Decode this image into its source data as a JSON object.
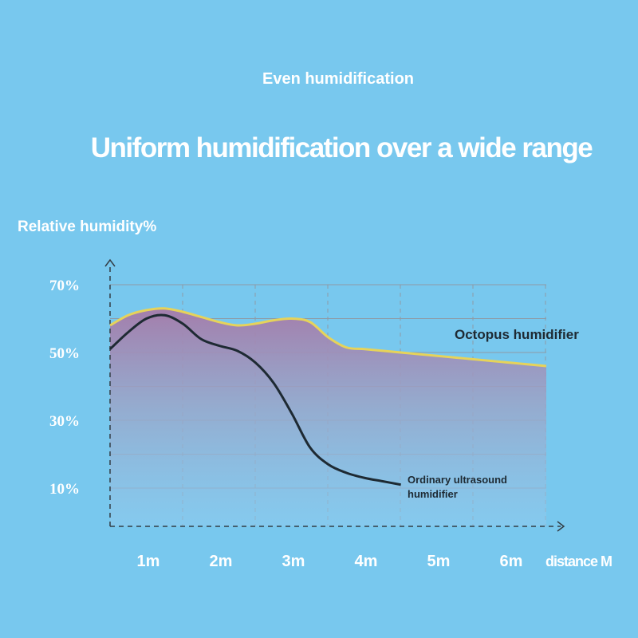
{
  "header": {
    "subtitle": "Even humidification",
    "title": "Uniform humidification over a wide range"
  },
  "chart_data": {
    "type": "area",
    "ylabel": "Relative humidity%",
    "xlabel": "distance M",
    "x_ticks": [
      "1m",
      "2m",
      "3m",
      "4m",
      "5m",
      "6m"
    ],
    "y_ticks": [
      "70%",
      "50%",
      "30%",
      "10%"
    ],
    "ylim": [
      0,
      75
    ],
    "xlim": [
      0,
      6
    ],
    "grid": true,
    "series": [
      {
        "name": "Octopus humidifier",
        "color": "#e6d35a",
        "x": [
          0,
          0.25,
          0.5,
          0.75,
          1.0,
          1.25,
          1.5,
          1.75,
          2.0,
          2.25,
          2.5,
          2.75,
          3.0,
          3.25,
          3.5,
          3.75,
          4.0,
          4.25,
          4.5,
          4.75,
          5.0,
          5.25,
          5.5,
          5.75,
          6.0
        ],
        "y": [
          58,
          61,
          62.5,
          63,
          62,
          60.5,
          59,
          58,
          58.5,
          59.5,
          60,
          59,
          54.5,
          51.5,
          51,
          50.5,
          50,
          49.5,
          49,
          48.5,
          48,
          47.5,
          47,
          46.5,
          46
        ]
      },
      {
        "name": "Ordinary ultrasound humidifier",
        "color": "#1e2a33",
        "x": [
          0,
          0.25,
          0.5,
          0.75,
          1.0,
          1.25,
          1.5,
          1.75,
          2.0,
          2.25,
          2.5,
          2.75,
          3.0,
          3.25,
          3.5,
          3.75,
          4.0
        ],
        "y": [
          51,
          56,
          60,
          61,
          58.5,
          54,
          52,
          50.5,
          47,
          41,
          32,
          22,
          17,
          14.5,
          13,
          12,
          11
        ]
      }
    ],
    "series_labels": {
      "octopus": "Octopus humidifier",
      "ordinary_line1": "Ordinary ultrasound",
      "ordinary_line2": "humidifier"
    },
    "colors": {
      "background": "#78c8ee",
      "area_top": "#a67aa8",
      "area_bottom": "#8fcbee",
      "octopus_line": "#e6d35a",
      "ordinary_line": "#1e2a33"
    }
  }
}
